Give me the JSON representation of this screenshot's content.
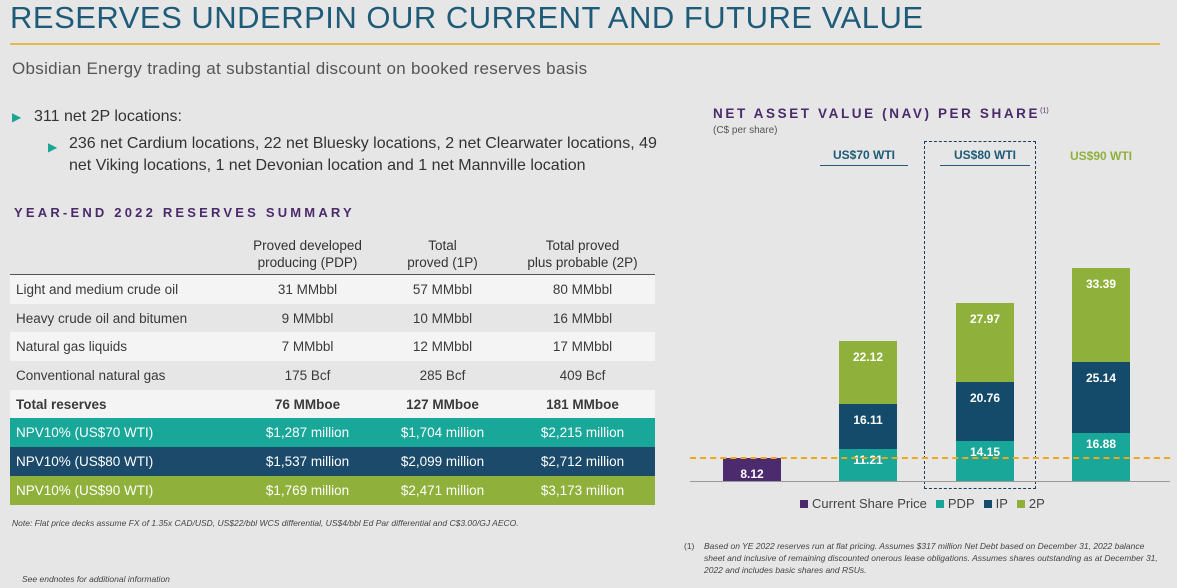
{
  "header": {
    "title": "RESERVES UNDERPIN OUR CURRENT AND FUTURE VALUE",
    "subtitle": "Obsidian Energy trading at substantial discount on booked reserves basis"
  },
  "bullets": {
    "main": "311 net 2P locations:",
    "sub": "236 net Cardium locations, 22 net Bluesky locations, 2 net Clearwater locations, 49 net Viking locations, 1 net Devonian location and 1 net Mannville location"
  },
  "reserves": {
    "title": "YEAR-END 2022 RESERVES SUMMARY",
    "headers": {
      "pdp": [
        "Proved developed",
        "producing (PDP)"
      ],
      "p1": [
        "Total",
        "proved (1P)"
      ],
      "p2": [
        "Total proved",
        "plus probable (2P)"
      ]
    },
    "rows": [
      {
        "label": "Light and medium crude oil",
        "pdp": "31 MMbbl",
        "p1": "57 MMbbl",
        "p2": "80 MMbbl"
      },
      {
        "label": "Heavy crude oil and bitumen",
        "pdp": "9 MMbbl",
        "p1": "10 MMbbl",
        "p2": "16 MMbbl"
      },
      {
        "label": "Natural gas liquids",
        "pdp": "7 MMbbl",
        "p1": "12 MMbbl",
        "p2": "17 MMbbl"
      },
      {
        "label": "Conventional natural gas",
        "pdp": "175 Bcf",
        "p1": "285 Bcf",
        "p2": "409 Bcf"
      },
      {
        "label": "Total reserves",
        "pdp": "76 MMboe",
        "p1": "127 MMboe",
        "p2": "181 MMboe"
      },
      {
        "label": "NPV10% (US$70 WTI)",
        "pdp": "$1,287 million",
        "p1": "$1,704 million",
        "p2": "$2,215 million"
      },
      {
        "label": "NPV10% (US$80 WTI)",
        "pdp": "$1,537 million",
        "p1": "$2,099 million",
        "p2": "$2,712 million"
      },
      {
        "label": "NPV10% (US$90 WTI)",
        "pdp": "$1,769 million",
        "p1": "$2,471 million",
        "p2": "$3,173 million"
      }
    ],
    "note": "Note: Flat price decks assume FX of 1.35x CAD/USD, US$22/bbl WCS differential, US$4/bbl Ed Par differential and C$3.00/GJ AECO.",
    "endnote": "See endnotes for additional information"
  },
  "nav_chart": {
    "title": "NET ASSET VALUE (NAV) PER SHARE",
    "title_sup": "(1)",
    "subtitle": "(C$ per share)",
    "scenario_labels": [
      "US$70 WTI",
      "US$80 WTI",
      "US$90 WTI"
    ],
    "colors": {
      "current": "#4c2a6e",
      "pdp": "#19a79a",
      "ip": "#144a6a",
      "p2": "#8fb13c",
      "price_line": "#f0a81a"
    },
    "legend": [
      "Current Share Price",
      "PDP",
      "IP",
      "2P"
    ]
  },
  "chart_data": {
    "type": "bar",
    "stacked": true,
    "categories": [
      "Current",
      "US$70 WTI",
      "US$80 WTI",
      "US$90 WTI"
    ],
    "series": [
      {
        "name": "Current Share Price",
        "values": [
          8.12,
          null,
          null,
          null
        ],
        "labels": [
          "8.12",
          "",
          "",
          ""
        ]
      },
      {
        "name": "PDP",
        "values": [
          null,
          11.21,
          14.15,
          16.88
        ],
        "labels": [
          "",
          "11.21",
          "14.15",
          "16.88"
        ]
      },
      {
        "name": "IP",
        "values": [
          null,
          16.11,
          20.76,
          25.14
        ],
        "labels": [
          "",
          "16.11",
          "20.76",
          "25.14"
        ]
      },
      {
        "name": "2P",
        "values": [
          null,
          22.12,
          27.97,
          33.39
        ],
        "labels": [
          "",
          "22.12",
          "27.97",
          "33.39"
        ]
      }
    ],
    "reference_line": 8.12,
    "legend_position": "bottom"
  },
  "footnote": {
    "num": "(1)",
    "text": "Based on YE 2022 reserves run at flat pricing. Assumes $317 million Net Debt based on December 31, 2022 balance sheet and inclusive of remaining discounted onerous lease obligations. Assumes shares outstanding as at December 31, 2022 and includes basic shares and RSUs."
  }
}
